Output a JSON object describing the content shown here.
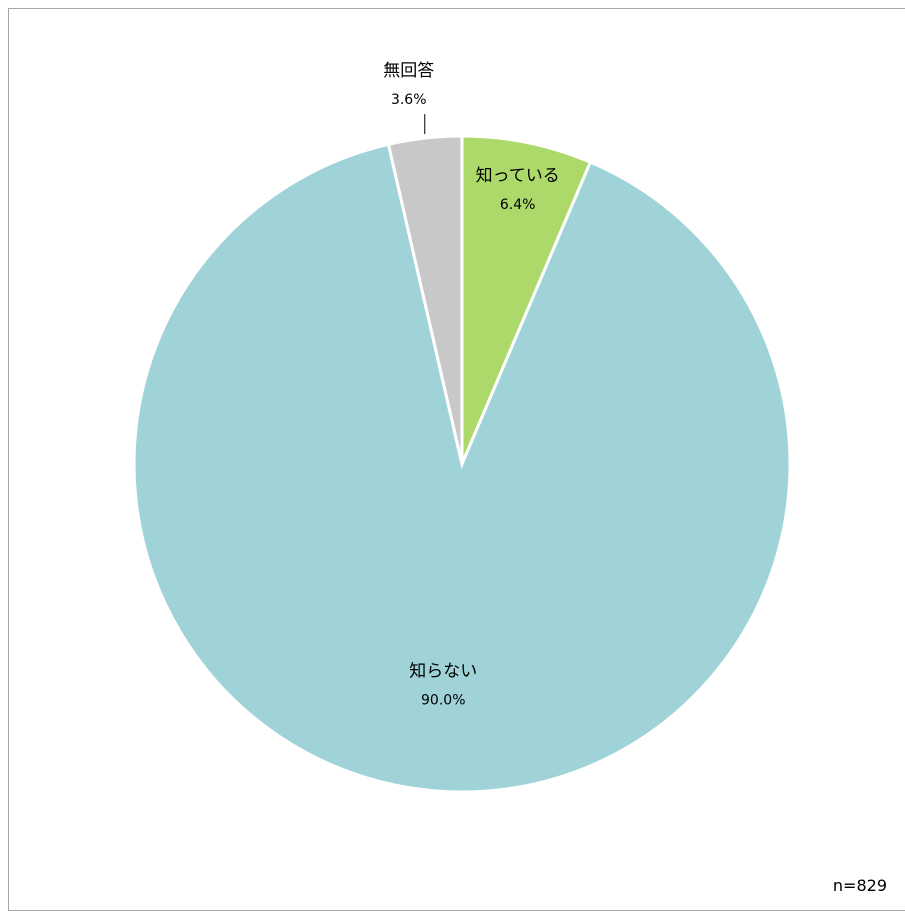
{
  "chart_data": {
    "type": "pie",
    "slices": [
      {
        "label": "知っている",
        "value": 6.4,
        "value_label": "6.4%",
        "color": "#acd96a"
      },
      {
        "label": "知らない",
        "value": 90.0,
        "value_label": "90.0%",
        "color": "#9fd3d7"
      },
      {
        "label": "無回答",
        "value": 3.6,
        "value_label": "3.6%",
        "color": "#c8c8c8"
      }
    ],
    "start": "12 o'clock",
    "direction": "clockwise",
    "note": "n=829"
  }
}
